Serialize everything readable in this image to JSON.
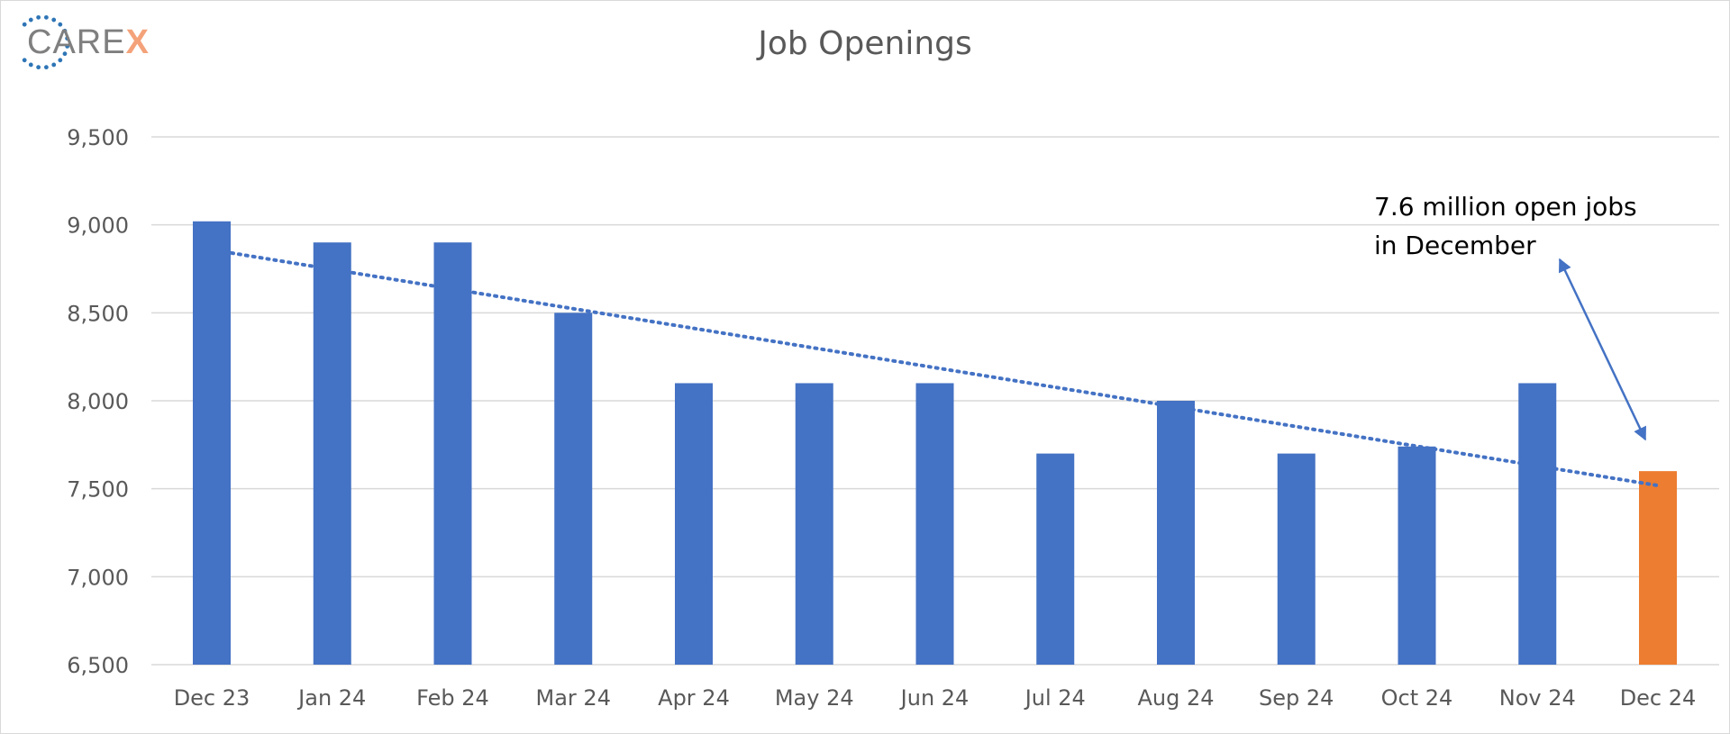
{
  "logo": {
    "prefix": "CARE",
    "suffix": "X"
  },
  "colors": {
    "bar": "#4472c4",
    "highlight_bar": "#ed7d31",
    "trendline": "#4472c4",
    "gridline": "#d9d9d9",
    "logo_dots": "#2e75b6",
    "logo_x": "#f4a27a"
  },
  "chart_data": {
    "type": "bar",
    "title": "Job Openings",
    "xlabel": "",
    "ylabel": "",
    "categories": [
      "Dec 23",
      "Jan 24",
      "Feb 24",
      "Mar 24",
      "Apr 24",
      "May 24",
      "Jun 24",
      "Jul 24",
      "Aug 24",
      "Sep 24",
      "Oct 24",
      "Nov 24",
      "Dec 24"
    ],
    "values": [
      9020,
      8900,
      8900,
      8500,
      8100,
      8100,
      8100,
      7700,
      8000,
      7700,
      7740,
      8100,
      7600
    ],
    "highlight_index": 12,
    "ylim": [
      6500,
      9500
    ],
    "yticks": [
      "6,500",
      "7,000",
      "7,500",
      "8,000",
      "8,500",
      "9,000",
      "9,500"
    ],
    "ytick_values": [
      6500,
      7000,
      7500,
      8000,
      8500,
      9000,
      9500
    ],
    "grid": true,
    "trendline": {
      "type": "linear",
      "style": "dotted",
      "start_value": 8840,
      "end_value": 7520
    },
    "annotation": {
      "lines": [
        "7.6 million open jobs",
        "in December"
      ],
      "points_to_index": 12
    }
  }
}
